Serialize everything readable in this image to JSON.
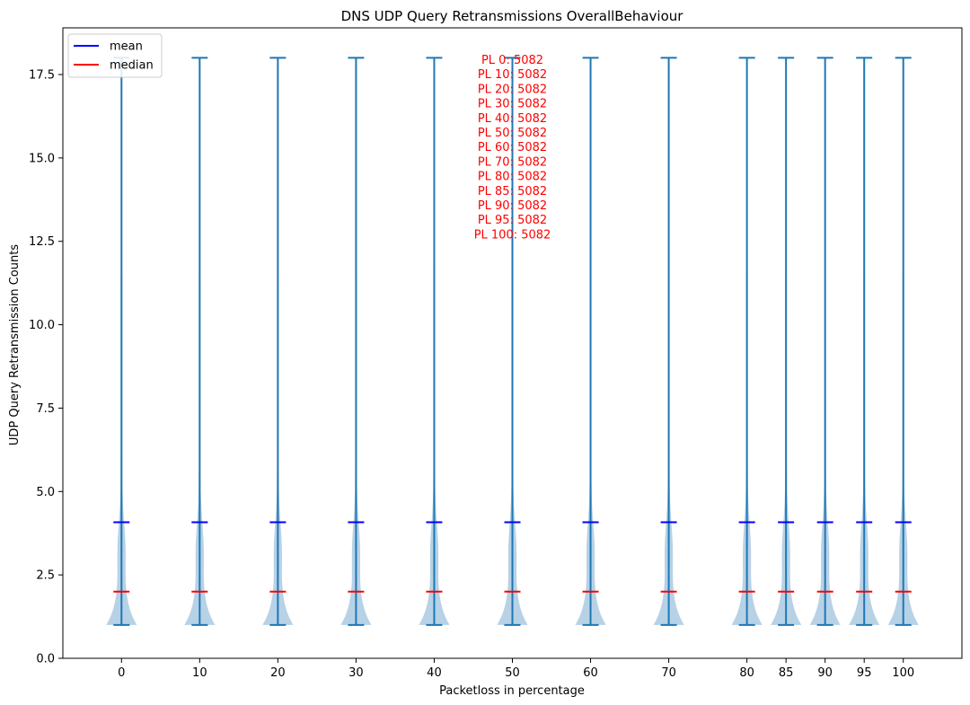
{
  "chart_data": {
    "type": "violin",
    "title": "DNS UDP Query Retransmissions OverallBehaviour",
    "xlabel": "Packetloss in percentage",
    "ylabel": "UDP Query Retransmission Counts",
    "categories": [
      "0",
      "10",
      "20",
      "30",
      "40",
      "50",
      "60",
      "70",
      "80",
      "85",
      "90",
      "95",
      "100"
    ],
    "x_positions": [
      0,
      10,
      20,
      30,
      40,
      50,
      60,
      70,
      80,
      85,
      90,
      95,
      100
    ],
    "xlim": [
      -7.5,
      107.5
    ],
    "ylim": [
      0,
      18.9
    ],
    "y_ticks": [
      0.0,
      2.5,
      5.0,
      7.5,
      10.0,
      12.5,
      15.0,
      17.5
    ],
    "y_tick_labels": [
      "0.0",
      "2.5",
      "5.0",
      "7.5",
      "10.0",
      "12.5",
      "15.0",
      "17.5"
    ],
    "series": [
      {
        "name": "mean",
        "values": [
          4.08,
          4.08,
          4.08,
          4.08,
          4.08,
          4.08,
          4.08,
          4.08,
          4.08,
          4.08,
          4.08,
          4.08,
          4.08
        ]
      },
      {
        "name": "median",
        "values": [
          2,
          2,
          2,
          2,
          2,
          2,
          2,
          2,
          2,
          2,
          2,
          2,
          2
        ]
      },
      {
        "name": "min",
        "values": [
          1,
          1,
          1,
          1,
          1,
          1,
          1,
          1,
          1,
          1,
          1,
          1,
          1
        ]
      },
      {
        "name": "max",
        "values": [
          18,
          18,
          18,
          18,
          18,
          18,
          18,
          18,
          18,
          18,
          18,
          18,
          18
        ]
      }
    ],
    "legend": {
      "placement": "top-left",
      "entries": [
        {
          "label": "mean",
          "color": "#0000ff"
        },
        {
          "label": "median",
          "color": "#ff0000"
        }
      ]
    },
    "annotations": [
      "PL 0: 5082",
      "PL 10: 5082",
      "PL 20: 5082",
      "PL 30: 5082",
      "PL 40: 5082",
      "PL 50: 5082",
      "PL 60: 5082",
      "PL 70: 5082",
      "PL 80: 5082",
      "PL 85: 5082",
      "PL 90: 5082",
      "PL 95: 5082",
      "PL 100: 5082"
    ],
    "grid": false,
    "colors": {
      "violin_fill": "#b7d2e6",
      "violin_lines": "#1f77b4",
      "mean": "#0000ff",
      "median": "#ff0000",
      "annotation": "#ff0000"
    }
  }
}
